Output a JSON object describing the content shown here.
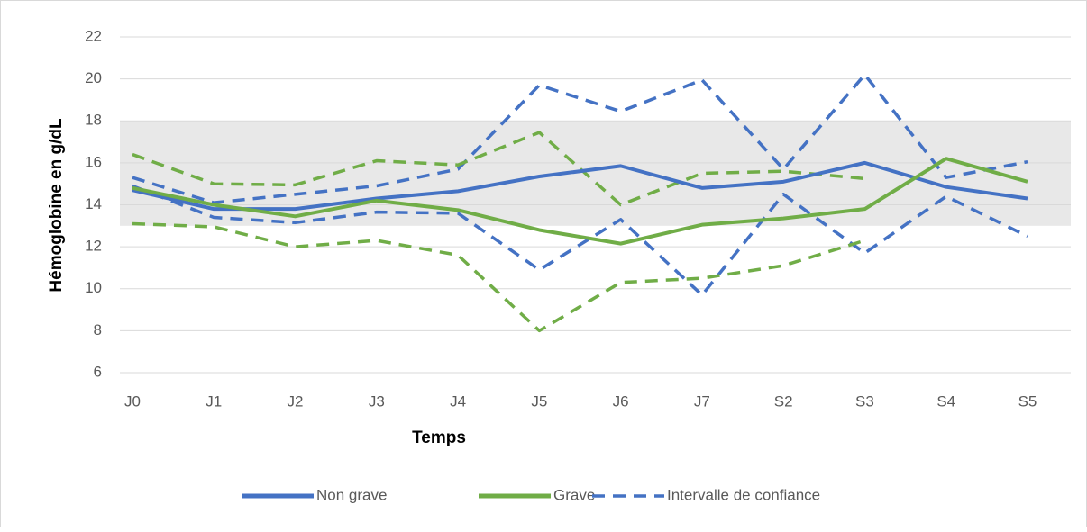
{
  "chart_data": {
    "type": "line",
    "x_label": "Temps",
    "y_label": "Hémoglobine en g/dL",
    "categories": [
      "J0",
      "J1",
      "J2",
      "J3",
      "J4",
      "J5",
      "J6",
      "J7",
      "S2",
      "S3",
      "S4",
      "S5"
    ],
    "ylim": [
      6,
      22
    ],
    "yticks": [
      6,
      8,
      10,
      12,
      14,
      16,
      18,
      20,
      22
    ],
    "grid": true,
    "reference_band": {
      "low": 13,
      "high": 18,
      "color": "#e8e8e8"
    },
    "series": [
      {
        "name": "Non grave",
        "color": "#4472c4",
        "values": [
          14.7,
          13.8,
          13.8,
          14.3,
          14.65,
          15.35,
          15.85,
          14.8,
          15.1,
          16.0,
          14.85,
          14.3
        ]
      },
      {
        "name": "Grave",
        "color": "#70ad47",
        "values": [
          14.8,
          14.0,
          13.45,
          14.2,
          13.75,
          12.8,
          12.15,
          13.05,
          13.35,
          13.8,
          16.2,
          15.1
        ]
      }
    ],
    "intervals": {
      "name": "Intervalle de confiance",
      "color": "#4472c4",
      "items": [
        {
          "color": "#4472c4",
          "upper": [
            15.3,
            14.1,
            14.5,
            14.9,
            15.7,
            19.7,
            18.45,
            19.95,
            15.7,
            20.2,
            15.3,
            16.05
          ],
          "lower": [
            14.9,
            13.4,
            13.15,
            13.65,
            13.6,
            10.9,
            13.3,
            9.7,
            14.5,
            11.7,
            14.4,
            12.5
          ]
        },
        {
          "color": "#70ad47",
          "upper": [
            16.4,
            15.0,
            14.95,
            16.1,
            15.9,
            17.45,
            14.0,
            15.5,
            15.6,
            15.25,
            null,
            null
          ],
          "lower": [
            13.1,
            12.95,
            12.0,
            12.3,
            11.6,
            8.0,
            10.3,
            10.5,
            11.1,
            12.3,
            null,
            null
          ]
        }
      ]
    }
  }
}
